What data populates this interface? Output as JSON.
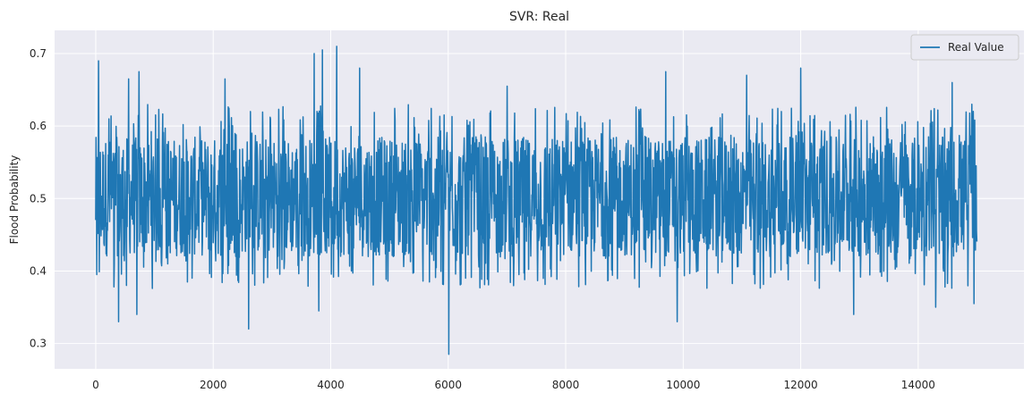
{
  "chart_data": {
    "type": "line",
    "title": "SVR: Real",
    "xlabel": "",
    "ylabel": "Flood Probability",
    "xlim": [
      -700,
      15800
    ],
    "ylim": [
      0.265,
      0.732
    ],
    "x_ticks": [
      0,
      2000,
      4000,
      6000,
      8000,
      10000,
      12000,
      14000
    ],
    "y_ticks": [
      0.3,
      0.4,
      0.5,
      0.6,
      0.7
    ],
    "y_tick_labels": [
      "0.3",
      "0.4",
      "0.5",
      "0.6",
      "0.7"
    ],
    "grid": true,
    "legend_position": "top-right",
    "colors": {
      "plot_bg": "#eaeaf2",
      "grid": "#ffffff",
      "series": "#1f77b4"
    },
    "series": [
      {
        "name": "Real Value",
        "x_start": 0,
        "x_end": 14999,
        "n_points": 15000,
        "typical_range": [
          0.42,
          0.585
        ],
        "peaks": [
          {
            "x": 50,
            "y": 0.69
          },
          {
            "x": 560,
            "y": 0.665
          },
          {
            "x": 740,
            "y": 0.675
          },
          {
            "x": 2200,
            "y": 0.665
          },
          {
            "x": 3720,
            "y": 0.7
          },
          {
            "x": 3860,
            "y": 0.705
          },
          {
            "x": 4100,
            "y": 0.71
          },
          {
            "x": 4490,
            "y": 0.68
          },
          {
            "x": 7000,
            "y": 0.655
          },
          {
            "x": 9700,
            "y": 0.675
          },
          {
            "x": 11080,
            "y": 0.67
          },
          {
            "x": 12000,
            "y": 0.68
          },
          {
            "x": 14580,
            "y": 0.66
          }
        ],
        "troughs": [
          {
            "x": 20,
            "y": 0.395
          },
          {
            "x": 390,
            "y": 0.33
          },
          {
            "x": 700,
            "y": 0.34
          },
          {
            "x": 2600,
            "y": 0.32
          },
          {
            "x": 3800,
            "y": 0.345
          },
          {
            "x": 6010,
            "y": 0.285
          },
          {
            "x": 9900,
            "y": 0.33
          },
          {
            "x": 12900,
            "y": 0.34
          },
          {
            "x": 14300,
            "y": 0.35
          },
          {
            "x": 14950,
            "y": 0.355
          }
        ]
      }
    ]
  }
}
